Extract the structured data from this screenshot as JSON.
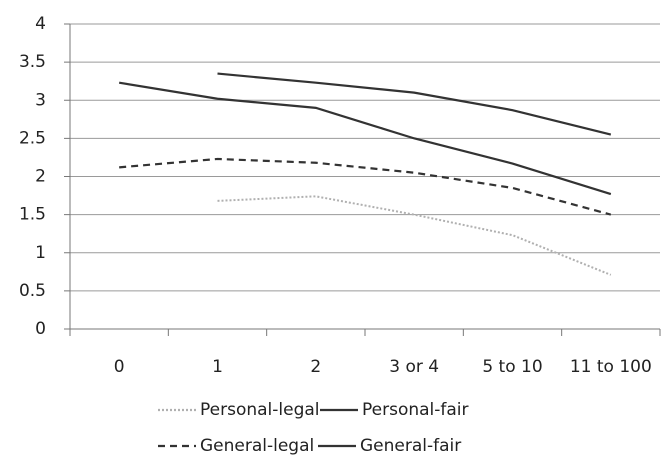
{
  "chart_data": {
    "type": "line",
    "categories": [
      "0",
      "1",
      "2",
      "3 or 4",
      "5 to 10",
      "11 to 100"
    ],
    "series": [
      {
        "name": "Personal-legal",
        "color": "#b0b0b0",
        "dash": "dotted",
        "values": [
          null,
          1.68,
          1.74,
          1.5,
          1.23,
          0.71
        ]
      },
      {
        "name": "Personal-fair",
        "color": "#333333",
        "dash": "solid",
        "values": [
          null,
          3.35,
          3.23,
          3.1,
          2.87,
          2.55
        ]
      },
      {
        "name": "General-legal",
        "color": "#333333",
        "dash": "dashed",
        "values": [
          2.12,
          2.23,
          2.18,
          2.05,
          1.85,
          1.5
        ]
      },
      {
        "name": "General-fair",
        "color": "#333333",
        "dash": "solid",
        "values": [
          3.23,
          3.02,
          2.9,
          2.5,
          2.17,
          1.77
        ]
      }
    ],
    "ylim": [
      0,
      4
    ],
    "yticks": [
      0,
      0.5,
      1,
      1.5,
      2,
      2.5,
      3,
      3.5,
      4
    ],
    "grid": true,
    "legend": "bottom"
  }
}
